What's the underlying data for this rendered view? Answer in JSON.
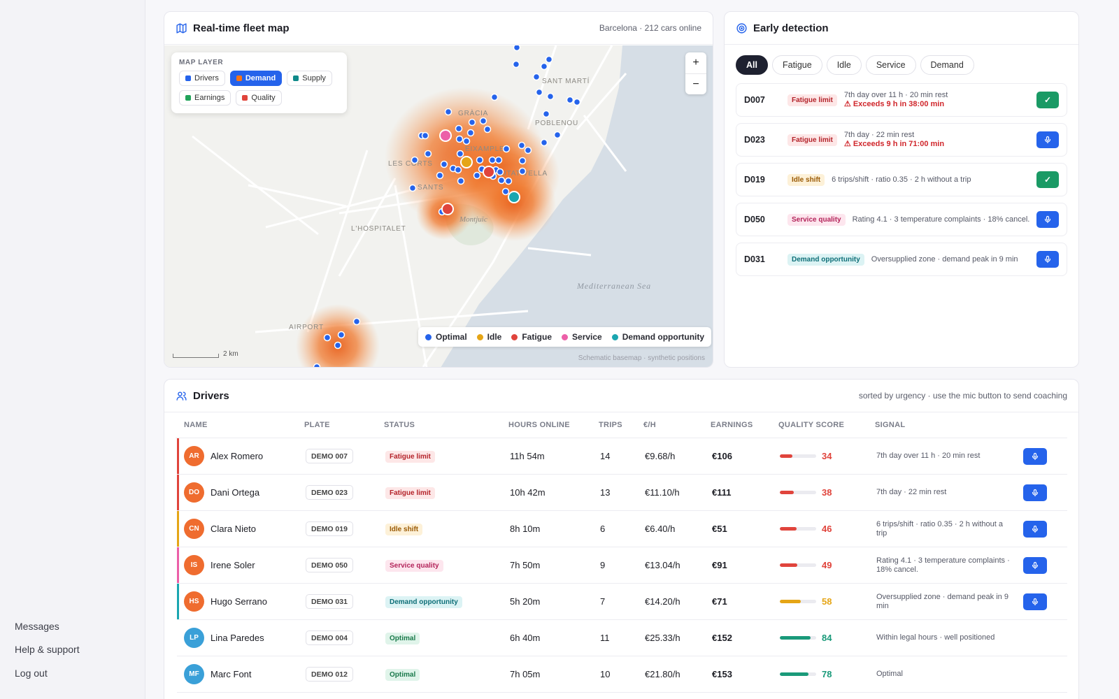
{
  "sidebar": {
    "messages": "Messages",
    "help": "Help & support",
    "logout": "Log out"
  },
  "map_card": {
    "title": "Real-time fleet map",
    "meta": "Barcelona · 212 cars online",
    "layer_title": "MAP LAYER",
    "layers": [
      {
        "label": "Drivers",
        "color": "#2563eb",
        "active": false
      },
      {
        "label": "Demand",
        "color": "#f97316",
        "active": true
      },
      {
        "label": "Supply",
        "color": "#0f8a8a",
        "active": false
      },
      {
        "label": "Earnings",
        "color": "#22a35a",
        "active": false
      },
      {
        "label": "Quality",
        "color": "#e0443c",
        "active": false
      }
    ],
    "zoom_in": "+",
    "zoom_out": "−",
    "places": [
      "GRÀCIA",
      "SANT MARTÍ",
      "POBLENOU",
      "EIXAMPLE",
      "LES CORTS",
      "CIUTAT VELLA",
      "SANTS",
      "L'HOSPITALET",
      "Montjuïc",
      "Mediterranean Sea",
      "AIRPORT"
    ],
    "legend": [
      {
        "label": "Optimal",
        "color": "#2563eb"
      },
      {
        "label": "Idle",
        "color": "#e5a516"
      },
      {
        "label": "Fatigue",
        "color": "#e0443c"
      },
      {
        "label": "Service",
        "color": "#ec5fa8"
      },
      {
        "label": "Demand opportunity",
        "color": "#1aa6b0"
      }
    ],
    "scale": "2 km",
    "attribution": "Schematic basemap · synthetic positions"
  },
  "detection": {
    "title": "Early detection",
    "filters": [
      "All",
      "Fatigue",
      "Idle",
      "Service",
      "Demand"
    ],
    "active_filter": "All",
    "items": [
      {
        "id": "D007",
        "tag": "Fatigue limit",
        "kind": "fatigue",
        "text": "7th day over 11 h · 20 min rest",
        "warn": "⚠ Exceeds 9 h in 38:00 min",
        "action": "ok"
      },
      {
        "id": "D023",
        "tag": "Fatigue limit",
        "kind": "fatigue",
        "text": "7th day · 22 min rest",
        "warn": "⚠ Exceeds 9 h in 71:00 min",
        "action": "mic"
      },
      {
        "id": "D019",
        "tag": "Idle shift",
        "kind": "idle",
        "text": "6 trips/shift · ratio 0.35 · 2 h without a trip",
        "warn": "",
        "action": "ok"
      },
      {
        "id": "D050",
        "tag": "Service quality",
        "kind": "service",
        "text": "Rating 4.1 · 3 temperature complaints · 18% cancel.",
        "warn": "",
        "action": "mic"
      },
      {
        "id": "D031",
        "tag": "Demand opportunity",
        "kind": "demand",
        "text": "Oversupplied zone · demand peak in 9 min",
        "warn": "",
        "action": "mic"
      }
    ]
  },
  "drivers": {
    "title": "Drivers",
    "meta": "sorted by urgency · use the mic button to send coaching",
    "columns": [
      "NAME",
      "PLATE",
      "STATUS",
      "HOURS ONLINE",
      "TRIPS",
      "€/H",
      "EARNINGS",
      "QUALITY SCORE",
      "SIGNAL"
    ],
    "rows": [
      {
        "initials": "AR",
        "name": "Alex Romero",
        "plate": "DEMO 007",
        "status": "Fatigue limit",
        "kind": "fatigue",
        "hours": "11h 54m",
        "trips": "14",
        "eur_h": "€9.68/h",
        "earnings": "€106",
        "quality": 34,
        "signal": "7th day over 11 h · 20 min rest",
        "mic": true,
        "stripe": "#e0443c",
        "avatar": "#ef6c2f",
        "qcolor": "#e0443c"
      },
      {
        "initials": "DO",
        "name": "Dani Ortega",
        "plate": "DEMO 023",
        "status": "Fatigue limit",
        "kind": "fatigue",
        "hours": "10h 42m",
        "trips": "13",
        "eur_h": "€11.10/h",
        "earnings": "€111",
        "quality": 38,
        "signal": "7th day · 22 min rest",
        "mic": true,
        "stripe": "#e0443c",
        "avatar": "#ef6c2f",
        "qcolor": "#e0443c"
      },
      {
        "initials": "CN",
        "name": "Clara Nieto",
        "plate": "DEMO 019",
        "status": "Idle shift",
        "kind": "idle",
        "hours": "8h 10m",
        "trips": "6",
        "eur_h": "€6.40/h",
        "earnings": "€51",
        "quality": 46,
        "signal": "6 trips/shift · ratio 0.35 · 2 h without a trip",
        "mic": true,
        "stripe": "#e5a516",
        "avatar": "#ef6c2f",
        "qcolor": "#e0443c"
      },
      {
        "initials": "IS",
        "name": "Irene Soler",
        "plate": "DEMO 050",
        "status": "Service quality",
        "kind": "service",
        "hours": "7h 50m",
        "trips": "9",
        "eur_h": "€13.04/h",
        "earnings": "€91",
        "quality": 49,
        "signal": "Rating 4.1 · 3 temperature complaints · 18% cancel.",
        "mic": true,
        "stripe": "#ec5fa8",
        "avatar": "#ef6c2f",
        "qcolor": "#e0443c"
      },
      {
        "initials": "HS",
        "name": "Hugo Serrano",
        "plate": "DEMO 031",
        "status": "Demand opportunity",
        "kind": "demand",
        "hours": "5h 20m",
        "trips": "7",
        "eur_h": "€14.20/h",
        "earnings": "€71",
        "quality": 58,
        "signal": "Oversupplied zone · demand peak in 9 min",
        "mic": true,
        "stripe": "#1aa6b0",
        "avatar": "#ef6c2f",
        "qcolor": "#e5a516"
      },
      {
        "initials": "LP",
        "name": "Lina Paredes",
        "plate": "DEMO 004",
        "status": "Optimal",
        "kind": "optimal",
        "hours": "6h 40m",
        "trips": "11",
        "eur_h": "€25.33/h",
        "earnings": "€152",
        "quality": 84,
        "signal": "Within legal hours · well positioned",
        "mic": false,
        "stripe": "",
        "avatar": "#3aa0d8",
        "qcolor": "#1a9a7a"
      },
      {
        "initials": "MF",
        "name": "Marc Font",
        "plate": "DEMO 012",
        "status": "Optimal",
        "kind": "optimal",
        "hours": "7h 05m",
        "trips": "10",
        "eur_h": "€21.80/h",
        "earnings": "€153",
        "quality": 78,
        "signal": "Optimal",
        "mic": false,
        "stripe": "",
        "avatar": "#3aa0d8",
        "qcolor": "#1a9a7a"
      }
    ]
  }
}
